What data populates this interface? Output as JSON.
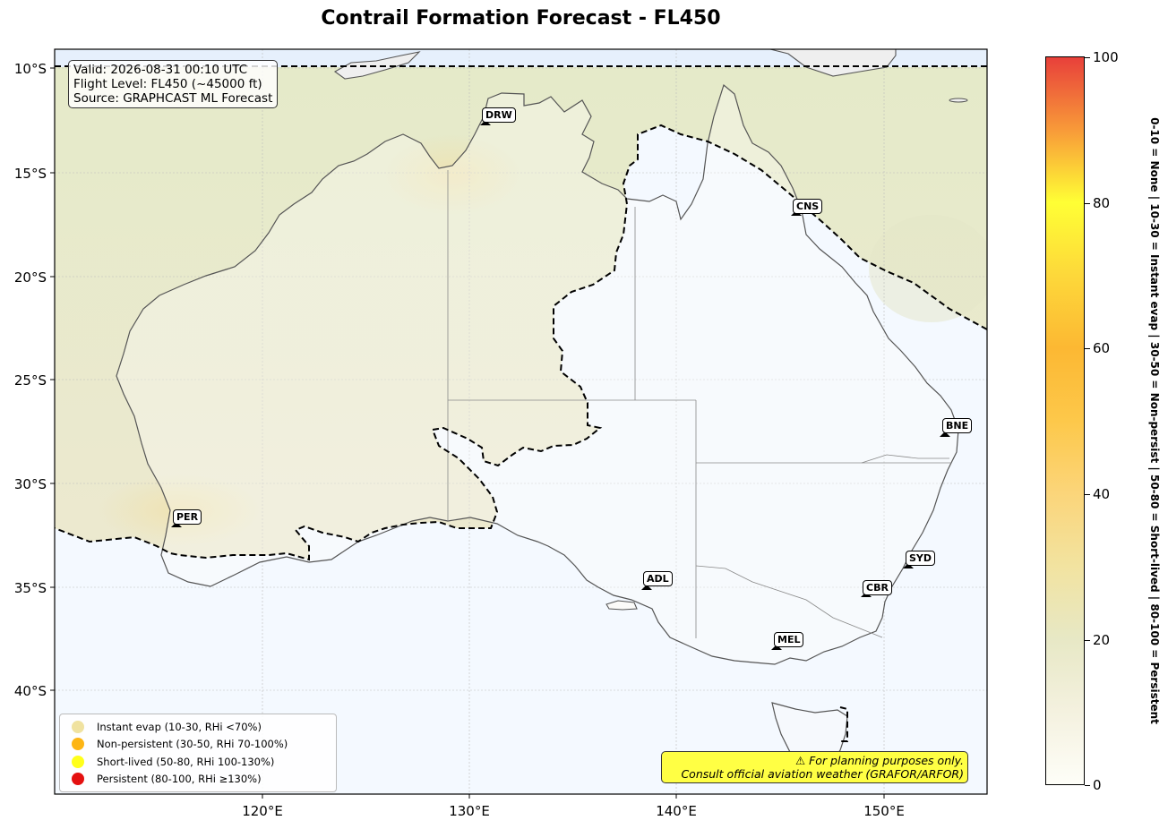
{
  "chart_title": "Contrail Formation Forecast - FL450",
  "info_box": {
    "line1": "Valid: 2026-08-31 00:10 UTC",
    "line2": "Flight Level: FL450 (~45000 ft)",
    "line3": "Source: GRAPHCAST ML Forecast"
  },
  "axes": {
    "lon_ticks": [
      "120°E",
      "130°E",
      "140°E",
      "150°E"
    ],
    "lat_ticks": [
      "10°S",
      "15°S",
      "20°S",
      "25°S",
      "30°S",
      "35°S",
      "40°S"
    ]
  },
  "cities": [
    {
      "code": "DRW"
    },
    {
      "code": "CNS"
    },
    {
      "code": "BNE"
    },
    {
      "code": "PER"
    },
    {
      "code": "SYD"
    },
    {
      "code": "ADL"
    },
    {
      "code": "CBR"
    },
    {
      "code": "MEL"
    }
  ],
  "legend": [
    {
      "label": "Instant evap (10-30, RHi <70%)",
      "color": "#f0e2a0"
    },
    {
      "label": "Non-persistent (30-50, RHi 70-100%)",
      "color": "#fdb514"
    },
    {
      "label": "Short-lived (50-80, RHi 100-130%)",
      "color": "#ffff1a"
    },
    {
      "label": "Persistent (80-100, RHi ≥130%)",
      "color": "#e41010"
    }
  ],
  "disclaimer": {
    "line1": "⚠ For planning purposes only.",
    "line2": "Consult official aviation weather (GRAFOR/ARFOR)"
  },
  "colorbar": {
    "ticks": [
      "0",
      "20",
      "40",
      "60",
      "80",
      "100"
    ],
    "side_label": "0-10 = None  |  10-30 = Instant evap  |  30-50 = Non-persist  |  50-80 = Short-lived  |  80-100 = Persistent"
  },
  "colors": {
    "ocean": "#f4f9ff",
    "field_low": "#f9f9f9",
    "field_mid": "#e6e8c4",
    "boundary": "#000000"
  }
}
